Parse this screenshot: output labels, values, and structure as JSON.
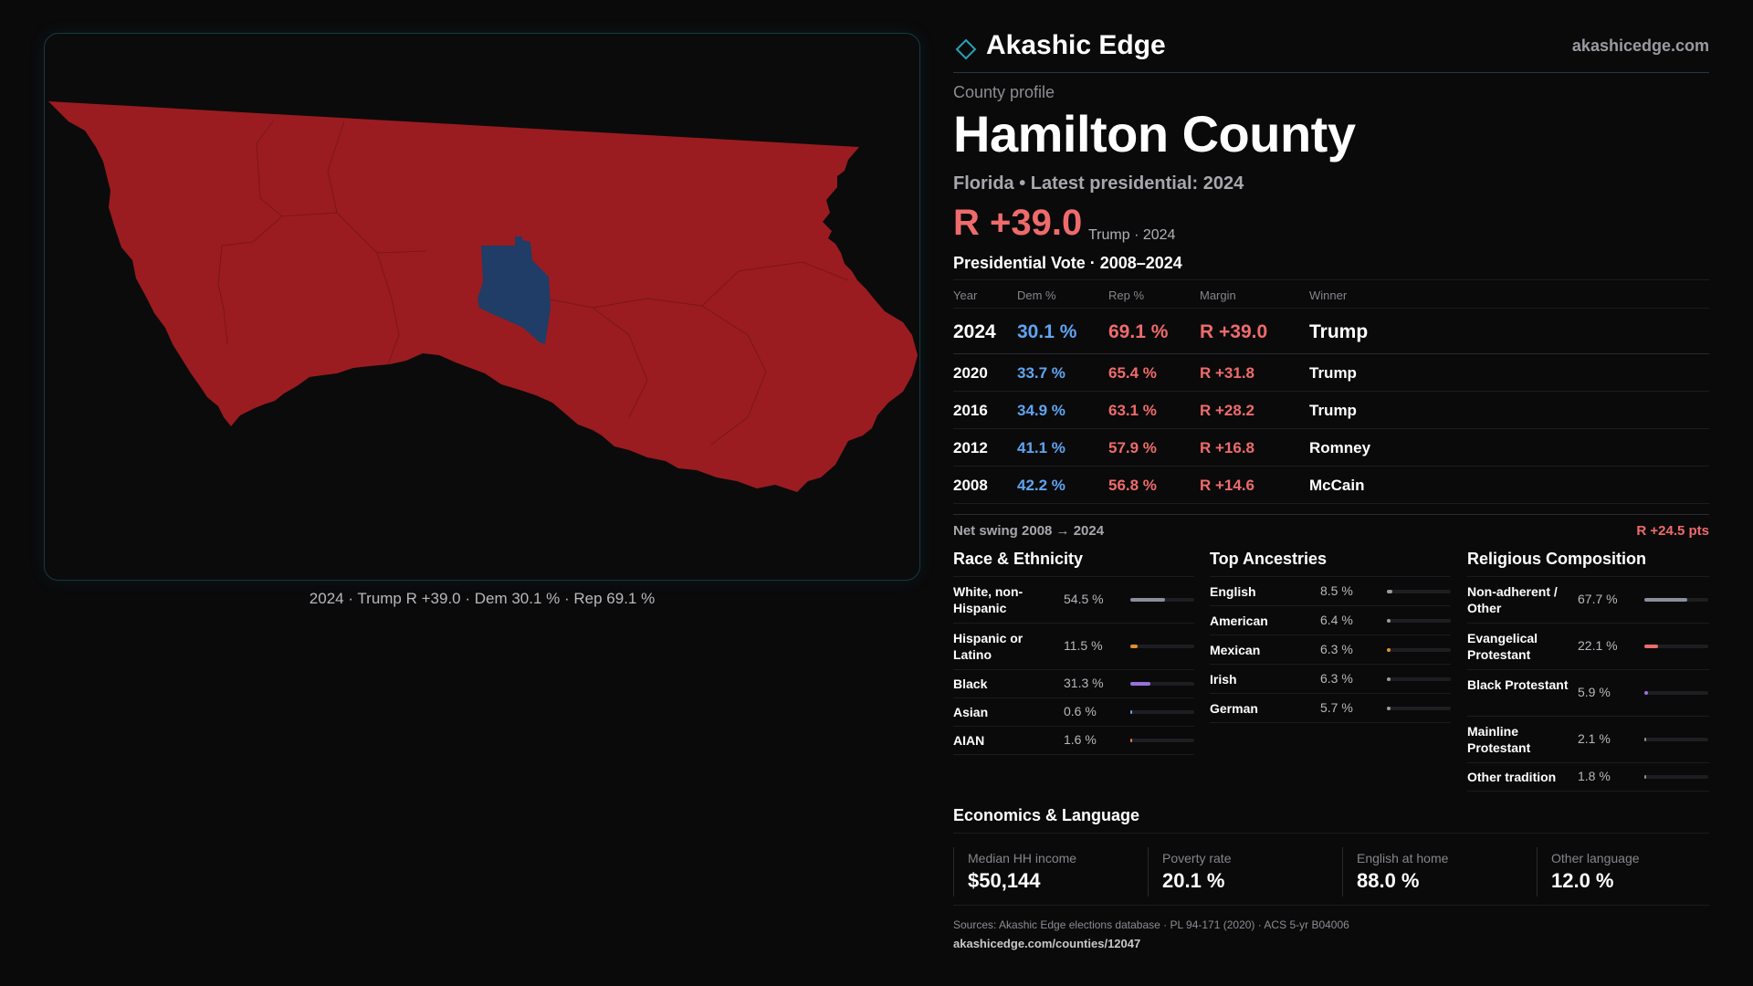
{
  "colors": {
    "republican": "#9a1c20",
    "democrat": "#1f3d66",
    "rep_text": "#ef6b6b",
    "dem_text": "#5fa5f0",
    "accent_border": "#173a40"
  },
  "map": {
    "caption": "2024 · Trump R +39.0 · Dem 30.1 % · Rep 69.1 %"
  },
  "brand": {
    "name": "Akashic Edge",
    "url": "akashicedge.com",
    "logo_icon": "diamond-outline-icon"
  },
  "profile": {
    "kicker": "County profile",
    "title": "Hamilton County",
    "subtitle": "Florida • Latest presidential: 2024",
    "headline_margin": "R +39.0",
    "headline_note": "Trump · 2024"
  },
  "presidential": {
    "title": "Presidential Vote · 2008–2024",
    "headers": {
      "year": "Year",
      "dem": "Dem %",
      "rep": "Rep %",
      "margin": "Margin",
      "winner": "Winner"
    },
    "rows": [
      {
        "year": "2024",
        "dem": "30.1 %",
        "rep": "69.1 %",
        "margin": "R +39.0",
        "winner": "Trump"
      },
      {
        "year": "2020",
        "dem": "33.7 %",
        "rep": "65.4 %",
        "margin": "R +31.8",
        "winner": "Trump"
      },
      {
        "year": "2016",
        "dem": "34.9 %",
        "rep": "63.1 %",
        "margin": "R +28.2",
        "winner": "Trump"
      },
      {
        "year": "2012",
        "dem": "41.1 %",
        "rep": "57.9 %",
        "margin": "R +16.8",
        "winner": "Romney"
      },
      {
        "year": "2008",
        "dem": "42.2 %",
        "rep": "56.8 %",
        "margin": "R +14.6",
        "winner": "McCain"
      }
    ],
    "swing_label": "Net swing 2008 → 2024",
    "swing_value": "R +24.5 pts"
  },
  "race": {
    "title": "Race & Ethnicity",
    "rows": [
      {
        "label": "White, non-Hispanic",
        "value": "54.5 %",
        "pct": 54.5,
        "color": "#8a8f9c"
      },
      {
        "label": "Hispanic or Latino",
        "value": "11.5 %",
        "pct": 11.5,
        "color": "#e0902a"
      },
      {
        "label": "Black",
        "value": "31.3 %",
        "pct": 31.3,
        "color": "#9b6fe0"
      },
      {
        "label": "Asian",
        "value": "0.6 %",
        "pct": 0.6,
        "color": "#5fa5f0"
      },
      {
        "label": "AIAN",
        "value": "1.6 %",
        "pct": 1.6,
        "color": "#e07a3a"
      }
    ]
  },
  "ancestry": {
    "title": "Top Ancestries",
    "rows": [
      {
        "label": "English",
        "value": "8.5 %",
        "pct": 8.5,
        "color": "#9a9aa0"
      },
      {
        "label": "American",
        "value": "6.4 %",
        "pct": 6.4,
        "color": "#9a9aa0"
      },
      {
        "label": "Mexican",
        "value": "6.3 %",
        "pct": 6.3,
        "color": "#e0902a"
      },
      {
        "label": "Irish",
        "value": "6.3 %",
        "pct": 6.3,
        "color": "#9a9aa0"
      },
      {
        "label": "German",
        "value": "5.7 %",
        "pct": 5.7,
        "color": "#9a9aa0"
      }
    ]
  },
  "religion": {
    "title": "Religious Composition",
    "rows": [
      {
        "label": "Non-adherent / Other",
        "value": "67.7 %",
        "pct": 67.7,
        "color": "#8a8f9c"
      },
      {
        "label": "Evangelical Protestant",
        "value": "22.1 %",
        "pct": 22.1,
        "color": "#ef6b6b"
      },
      {
        "label": "Black Protestant",
        "value": "5.9 %",
        "pct": 5.9,
        "color": "#9b6fe0"
      },
      {
        "label": "Mainline Protestant",
        "value": "2.1 %",
        "pct": 2.1,
        "color": "#8a8f9c"
      },
      {
        "label": "Other tradition",
        "value": "1.8 %",
        "pct": 1.8,
        "color": "#8a8f9c"
      }
    ]
  },
  "economics": {
    "title": "Economics & Language",
    "cells": [
      {
        "label": "Median HH income",
        "value": "$50,144"
      },
      {
        "label": "Poverty rate",
        "value": "20.1 %"
      },
      {
        "label": "English at home",
        "value": "88.0 %"
      },
      {
        "label": "Other language",
        "value": "12.0 %"
      }
    ]
  },
  "footer": {
    "sources": "Sources: Akashic Edge elections database · PL 94-171 (2020) · ACS 5-yr B04006",
    "url": "akashicedge.com/counties/12047"
  }
}
